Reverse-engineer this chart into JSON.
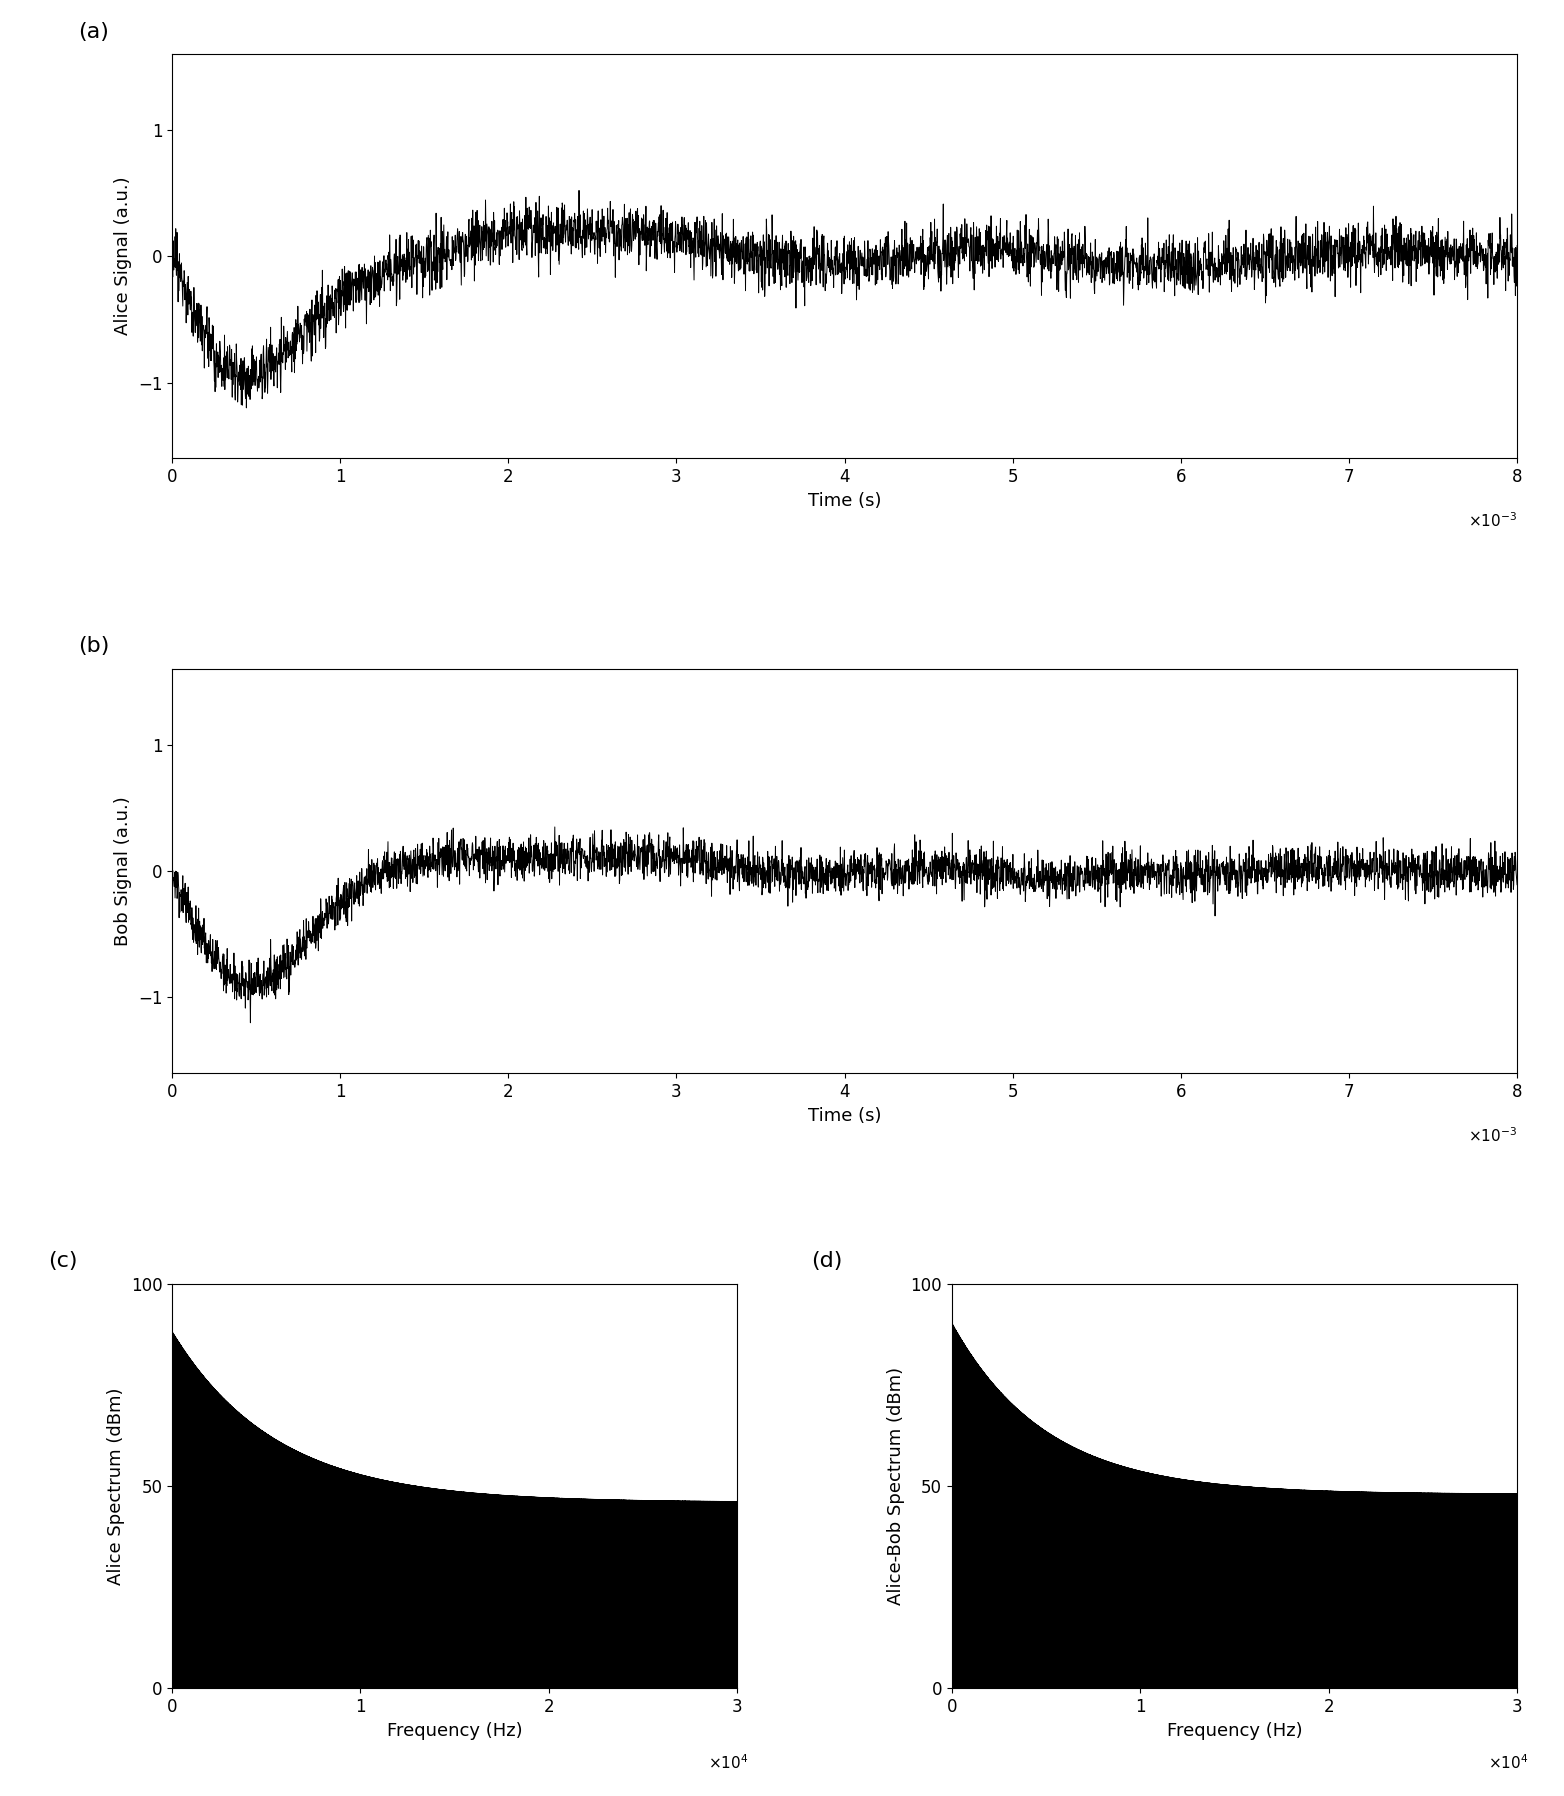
{
  "fig_width": 15.64,
  "fig_height": 17.96,
  "dpi": 100,
  "panel_labels": [
    "(a)",
    "(b)",
    "(c)",
    "(d)"
  ],
  "subplot_a": {
    "ylabel": "Alice Signal (a.u.)",
    "xlabel": "Time (s)",
    "xlim": [
      0,
      8
    ],
    "ylim": [
      -1.6,
      1.6
    ],
    "yticks": [
      -1,
      0,
      1
    ],
    "xticks": [
      0,
      1,
      2,
      3,
      4,
      5,
      6,
      7,
      8
    ]
  },
  "subplot_b": {
    "ylabel": "Bob Signal (a.u.)",
    "xlabel": "Time (s)",
    "xlim": [
      0,
      8
    ],
    "ylim": [
      -1.6,
      1.6
    ],
    "yticks": [
      -1,
      0,
      1
    ],
    "xticks": [
      0,
      1,
      2,
      3,
      4,
      5,
      6,
      7,
      8
    ]
  },
  "subplot_c": {
    "ylabel": "Alice Spectrum (dBm)",
    "xlabel": "Frequency (Hz)",
    "xlim": [
      0,
      3
    ],
    "ylim": [
      0,
      100
    ],
    "yticks": [
      0,
      50,
      100
    ],
    "xticks": [
      0,
      1,
      2,
      3
    ]
  },
  "subplot_d": {
    "ylabel": "Alice-Bob Spectrum (dBm)",
    "xlabel": "Frequency (Hz)",
    "xlim": [
      0,
      3
    ],
    "ylim": [
      0,
      100
    ],
    "yticks": [
      0,
      50,
      100
    ],
    "xticks": [
      0,
      1,
      2,
      3
    ]
  },
  "line_color": "#000000",
  "background_color": "#ffffff"
}
